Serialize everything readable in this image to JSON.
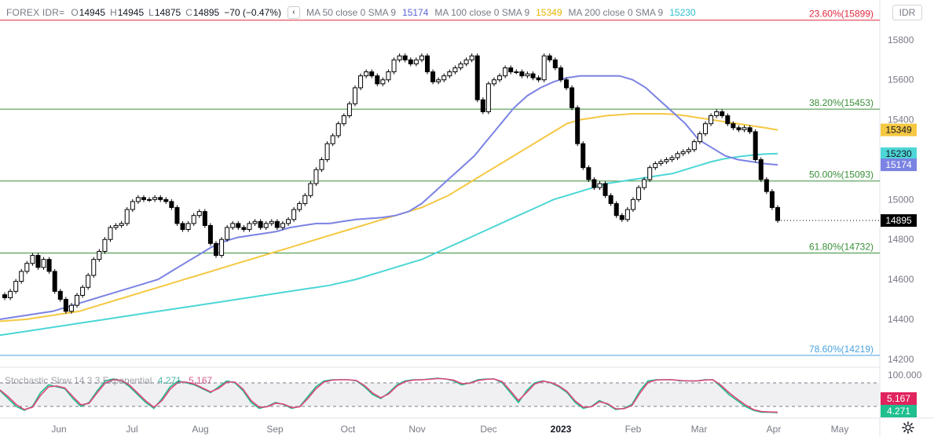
{
  "header": {
    "symbol": "FOREX IDR=",
    "open_key": "O",
    "open": "14945",
    "high_key": "H",
    "high": "14945",
    "low_key": "L",
    "low": "14875",
    "close_key": "C",
    "close": "14895",
    "change": "−70 (−0.47%)",
    "collapse_glyph": "‹",
    "ma50_label": "MA 50 close 0 SMA 9",
    "ma50_value": "15174",
    "ma100_label": "MA 100 close 0 SMA 9",
    "ma100_value": "15349",
    "ma200_label": "MA 200 close 0 SMA 9",
    "ma200_value": "15230"
  },
  "currency_button": "IDR",
  "settings_icon": "gear-icon",
  "colors": {
    "ma50": "#7b83e3",
    "ma100": "#f5c842",
    "ma200": "#4dd6d6",
    "fib_red": "#e0283f",
    "fib_green": "#3a8f3a",
    "fib_blue": "#4aa3df",
    "stoch_k": "#1fbf8f",
    "stoch_d": "#e0457b",
    "last_price_bg": "#000000"
  },
  "chart_data": {
    "type": "candlestick",
    "price_axis": {
      "ylim": [
        14160,
        16000
      ],
      "ticks": [
        15800,
        15600,
        15400,
        15200,
        15000,
        14800,
        14600,
        14400,
        14200
      ]
    },
    "time_axis": {
      "labels": [
        "Jun",
        "Jul",
        "Aug",
        "Sep",
        "Oct",
        "Nov",
        "Dec",
        "2023",
        "Feb",
        "Mar",
        "Apr",
        "May"
      ]
    },
    "fib_levels": [
      {
        "label": "23.60%(15899)",
        "value": 15899,
        "color": "fib_red"
      },
      {
        "label": "38.20%(15453)",
        "value": 15453,
        "color": "fib_green"
      },
      {
        "label": "50.00%(15093)",
        "value": 15093,
        "color": "fib_green"
      },
      {
        "label": "61.80%(14732)",
        "value": 14732,
        "color": "fib_green"
      },
      {
        "label": "78.60%(14219)",
        "value": 14219,
        "color": "fib_blue"
      }
    ],
    "price_tags": [
      {
        "text": "15349",
        "value": 15349,
        "color": "ma100"
      },
      {
        "text": "15230",
        "value": 15230,
        "color": "ma200"
      },
      {
        "text": "15174",
        "value": 15174,
        "color": "ma50"
      },
      {
        "text": "14895",
        "value": 14895,
        "color": "last_price_bg"
      }
    ],
    "closes": [
      14508,
      14540,
      14590,
      14640,
      14680,
      14720,
      14660,
      14700,
      14640,
      14540,
      14500,
      14440,
      14470,
      14520,
      14560,
      14620,
      14700,
      14740,
      14800,
      14860,
      14870,
      14880,
      14950,
      14990,
      15010,
      15000,
      15000,
      15010,
      15000,
      14990,
      14960,
      14880,
      14850,
      14880,
      14920,
      14940,
      14870,
      14780,
      14720,
      14800,
      14860,
      14880,
      14860,
      14850,
      14880,
      14890,
      14860,
      14880,
      14890,
      14860,
      14880,
      14900,
      14950,
      14980,
      15020,
      15080,
      15150,
      15200,
      15280,
      15320,
      15380,
      15420,
      15480,
      15560,
      15620,
      15640,
      15620,
      15580,
      15600,
      15640,
      15700,
      15720,
      15700,
      15680,
      15700,
      15720,
      15640,
      15590,
      15600,
      15620,
      15640,
      15660,
      15680,
      15700,
      15720,
      15500,
      15440,
      15580,
      15600,
      15620,
      15660,
      15640,
      15640,
      15620,
      15630,
      15610,
      15600,
      15720,
      15700,
      15660,
      15600,
      15560,
      15460,
      15280,
      15160,
      15100,
      15060,
      15080,
      15020,
      14980,
      14920,
      14900,
      14950,
      15000,
      15060,
      15100,
      15160,
      15180,
      15190,
      15200,
      15210,
      15230,
      15240,
      15250,
      15290,
      15330,
      15380,
      15420,
      15440,
      15420,
      15380,
      15360,
      15350,
      15360,
      15340,
      15200,
      15100,
      15040,
      14960,
      14895
    ],
    "ma50": [
      14400,
      14410,
      14420,
      14430,
      14440,
      14460,
      14480,
      14500,
      14520,
      14540,
      14560,
      14580,
      14600,
      14640,
      14680,
      14720,
      14760,
      14790,
      14810,
      14820,
      14830,
      14840,
      14860,
      14870,
      14880,
      14880,
      14890,
      14900,
      14905,
      14910,
      14920,
      14940,
      14980,
      15040,
      15100,
      15160,
      15220,
      15300,
      15380,
      15460,
      15520,
      15560,
      15590,
      15610,
      15620,
      15620,
      15620,
      15620,
      15600,
      15560,
      15500,
      15440,
      15380,
      15300,
      15260,
      15220,
      15200,
      15190,
      15180,
      15174
    ],
    "ma100": [
      14390,
      14395,
      14400,
      14410,
      14420,
      14430,
      14440,
      14460,
      14480,
      14500,
      14520,
      14540,
      14560,
      14580,
      14600,
      14620,
      14640,
      14660,
      14680,
      14700,
      14720,
      14740,
      14760,
      14780,
      14800,
      14820,
      14840,
      14860,
      14880,
      14900,
      14920,
      14940,
      14960,
      14990,
      15020,
      15060,
      15100,
      15140,
      15180,
      15220,
      15260,
      15300,
      15340,
      15380,
      15400,
      15410,
      15420,
      15425,
      15430,
      15430,
      15430,
      15428,
      15420,
      15410,
      15400,
      15390,
      15380,
      15370,
      15360,
      15349
    ],
    "ma200": [
      14320,
      14330,
      14340,
      14350,
      14360,
      14370,
      14380,
      14390,
      14400,
      14410,
      14420,
      14430,
      14440,
      14450,
      14460,
      14470,
      14480,
      14490,
      14500,
      14510,
      14520,
      14530,
      14540,
      14550,
      14560,
      14570,
      14585,
      14600,
      14620,
      14640,
      14660,
      14680,
      14700,
      14730,
      14760,
      14790,
      14820,
      14850,
      14880,
      14910,
      14940,
      14970,
      15000,
      15020,
      15040,
      15060,
      15080,
      15090,
      15100,
      15110,
      15120,
      15130,
      15150,
      15170,
      15190,
      15205,
      15215,
      15222,
      15228,
      15230
    ]
  },
  "stochastic": {
    "label": "Stochastic Slow 14 3 3 Exponential",
    "k_value": "4.271",
    "d_value": "5.167",
    "ylim": [
      0,
      100
    ],
    "axis_top": "100.000",
    "k": [
      60,
      40,
      20,
      10,
      20,
      55,
      75,
      70,
      65,
      40,
      20,
      30,
      60,
      85,
      90,
      85,
      70,
      50,
      30,
      15,
      40,
      70,
      85,
      80,
      75,
      65,
      55,
      70,
      85,
      80,
      60,
      30,
      15,
      20,
      30,
      25,
      15,
      20,
      45,
      70,
      85,
      88,
      88,
      88,
      85,
      70,
      50,
      40,
      55,
      75,
      85,
      88,
      88,
      90,
      92,
      90,
      85,
      75,
      80,
      88,
      90,
      90,
      80,
      55,
      30,
      60,
      80,
      85,
      80,
      70,
      55,
      30,
      15,
      20,
      35,
      25,
      12,
      15,
      25,
      60,
      85,
      88,
      88,
      88,
      85,
      85,
      85,
      88,
      88,
      70,
      50,
      35,
      20,
      10,
      5,
      5,
      4.3
    ],
    "d": [
      62,
      45,
      25,
      12,
      18,
      48,
      70,
      72,
      67,
      45,
      24,
      28,
      55,
      80,
      88,
      86,
      74,
      54,
      34,
      18,
      35,
      64,
      82,
      82,
      77,
      67,
      57,
      66,
      82,
      82,
      64,
      35,
      18,
      19,
      28,
      26,
      17,
      19,
      40,
      65,
      82,
      87,
      88,
      88,
      86,
      73,
      54,
      42,
      52,
      72,
      83,
      87,
      88,
      89,
      91,
      90,
      87,
      78,
      79,
      86,
      89,
      90,
      83,
      60,
      35,
      55,
      77,
      84,
      81,
      72,
      58,
      34,
      18,
      19,
      32,
      27,
      14,
      14,
      22,
      54,
      81,
      87,
      88,
      88,
      86,
      85,
      85,
      87,
      88,
      74,
      55,
      39,
      24,
      12,
      7,
      6,
      5.2
    ]
  }
}
